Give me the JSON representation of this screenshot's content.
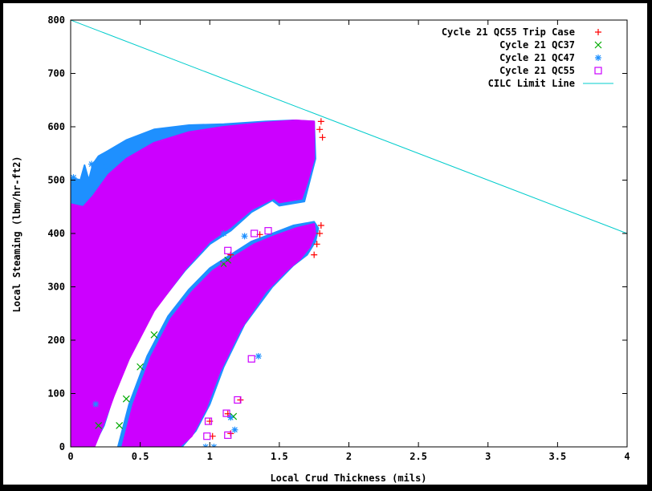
{
  "chart_data": {
    "type": "scatter",
    "title": "",
    "xlabel": "Local Crud Thickness (mils)",
    "ylabel": "Local Steaming (lbm/hr-ft2)",
    "xlim": [
      0,
      4
    ],
    "ylim": [
      0,
      800
    ],
    "x_ticks": [
      "0",
      "0.5",
      "1",
      "1.5",
      "2",
      "2.5",
      "3",
      "3.5",
      "4"
    ],
    "y_ticks": [
      "0",
      "100",
      "200",
      "300",
      "400",
      "500",
      "600",
      "700",
      "800"
    ],
    "grid": false,
    "legend_position": "top-right",
    "series": [
      {
        "name": "Cycle 21 QC55 Trip Case",
        "marker": "plus",
        "color": "#ff0000",
        "points": [
          [
            1.8,
            610
          ],
          [
            1.81,
            580
          ],
          [
            1.79,
            595
          ],
          [
            1.8,
            415
          ],
          [
            1.79,
            400
          ],
          [
            1.77,
            380
          ],
          [
            1.75,
            360
          ],
          [
            1.0,
            48
          ],
          [
            1.02,
            20
          ],
          [
            1.15,
            25
          ],
          [
            1.22,
            88
          ],
          [
            1.13,
            62
          ],
          [
            1.36,
            398
          ],
          [
            1.15,
            360
          ]
        ]
      },
      {
        "name": "Cycle 21 QC37",
        "marker": "x",
        "color": "#00aa00",
        "points": [
          [
            1.13,
            350
          ],
          [
            1.1,
            343
          ],
          [
            1.17,
            57
          ],
          [
            0.35,
            40
          ],
          [
            0.4,
            90
          ],
          [
            0.5,
            150
          ],
          [
            0.6,
            210
          ],
          [
            0.2,
            40
          ]
        ]
      },
      {
        "name": "Cycle 21 QC47",
        "marker": "star",
        "color": "#1e90ff",
        "points": [
          [
            1.03,
            0
          ],
          [
            0.97,
            0
          ],
          [
            1.15,
            55
          ],
          [
            1.18,
            32
          ],
          [
            1.35,
            170
          ],
          [
            1.1,
            400
          ],
          [
            1.25,
            395
          ],
          [
            0.02,
            505
          ],
          [
            0.15,
            530
          ],
          [
            0.25,
            525
          ],
          [
            0.18,
            80
          ]
        ]
      },
      {
        "name": "Cycle 21 QC55",
        "marker": "square",
        "color": "#cc00ff",
        "points": [
          [
            0.98,
            20
          ],
          [
            0.99,
            48
          ],
          [
            1.12,
            63
          ],
          [
            1.13,
            22
          ],
          [
            1.2,
            88
          ],
          [
            1.3,
            165
          ],
          [
            1.42,
            405
          ],
          [
            1.32,
            400
          ],
          [
            1.1,
            340
          ],
          [
            1.13,
            368
          ],
          [
            0.15,
            40
          ]
        ]
      },
      {
        "name": "CILC Limit Line",
        "marker": "line",
        "color": "#00cccc",
        "points": [
          [
            0,
            800
          ],
          [
            4,
            400
          ]
        ]
      }
    ],
    "clusters": [
      {
        "series": "Cycle 21 QC47",
        "color": "#1e90ff",
        "outline": [
          [
            0,
            0
          ],
          [
            0,
            505
          ],
          [
            0.07,
            500
          ],
          [
            0.1,
            528
          ],
          [
            0.13,
            500
          ],
          [
            0.16,
            530
          ],
          [
            0.2,
            545
          ],
          [
            0.27,
            555
          ],
          [
            0.4,
            575
          ],
          [
            0.6,
            595
          ],
          [
            0.85,
            603
          ],
          [
            1.1,
            605
          ],
          [
            1.4,
            610
          ],
          [
            1.6,
            612
          ],
          [
            1.75,
            610
          ],
          [
            1.76,
            540
          ],
          [
            1.72,
            500
          ],
          [
            1.68,
            460
          ],
          [
            1.5,
            452
          ],
          [
            1.45,
            462
          ],
          [
            1.3,
            440
          ],
          [
            1.15,
            405
          ],
          [
            1.0,
            380
          ],
          [
            0.82,
            330
          ],
          [
            0.58,
            250
          ],
          [
            0.4,
            160
          ],
          [
            0.3,
            90
          ],
          [
            0.24,
            40
          ],
          [
            0.16,
            0
          ]
        ]
      },
      {
        "series": "Cycle 21 QC55",
        "color": "#cc00ff",
        "outline": [
          [
            0,
            0
          ],
          [
            0,
            455
          ],
          [
            0.09,
            450
          ],
          [
            0.16,
            470
          ],
          [
            0.27,
            510
          ],
          [
            0.4,
            540
          ],
          [
            0.6,
            570
          ],
          [
            0.85,
            590
          ],
          [
            1.1,
            600
          ],
          [
            1.4,
            608
          ],
          [
            1.62,
            612
          ],
          [
            1.75,
            610
          ],
          [
            1.75,
            540
          ],
          [
            1.7,
            495
          ],
          [
            1.66,
            465
          ],
          [
            1.5,
            458
          ],
          [
            1.46,
            466
          ],
          [
            1.3,
            445
          ],
          [
            1.15,
            412
          ],
          [
            1.0,
            385
          ],
          [
            0.83,
            335
          ],
          [
            0.6,
            255
          ],
          [
            0.42,
            165
          ],
          [
            0.31,
            95
          ],
          [
            0.24,
            45
          ],
          [
            0.17,
            0
          ]
        ]
      },
      {
        "series": "Cycle 21 QC47",
        "color": "#1e90ff",
        "outline": [
          [
            0.34,
            0
          ],
          [
            0.42,
            80
          ],
          [
            0.55,
            170
          ],
          [
            0.7,
            245
          ],
          [
            0.85,
            295
          ],
          [
            1.0,
            335
          ],
          [
            1.15,
            360
          ],
          [
            1.3,
            385
          ],
          [
            1.45,
            400
          ],
          [
            1.6,
            415
          ],
          [
            1.75,
            422
          ],
          [
            1.78,
            410
          ],
          [
            1.76,
            385
          ],
          [
            1.7,
            360
          ],
          [
            1.6,
            340
          ],
          [
            1.45,
            300
          ],
          [
            1.25,
            230
          ],
          [
            1.1,
            150
          ],
          [
            1.0,
            80
          ],
          [
            0.9,
            30
          ],
          [
            0.8,
            0
          ]
        ]
      },
      {
        "series": "Cycle 21 QC55",
        "color": "#cc00ff",
        "outline": [
          [
            0.37,
            0
          ],
          [
            0.45,
            80
          ],
          [
            0.58,
            170
          ],
          [
            0.72,
            240
          ],
          [
            0.87,
            290
          ],
          [
            1.02,
            330
          ],
          [
            1.17,
            356
          ],
          [
            1.32,
            380
          ],
          [
            1.47,
            396
          ],
          [
            1.62,
            410
          ],
          [
            1.75,
            418
          ],
          [
            1.76,
            400
          ],
          [
            1.72,
            375
          ],
          [
            1.65,
            352
          ],
          [
            1.55,
            330
          ],
          [
            1.4,
            290
          ],
          [
            1.22,
            220
          ],
          [
            1.07,
            140
          ],
          [
            0.97,
            70
          ],
          [
            0.87,
            20
          ],
          [
            0.78,
            0
          ]
        ]
      }
    ]
  }
}
